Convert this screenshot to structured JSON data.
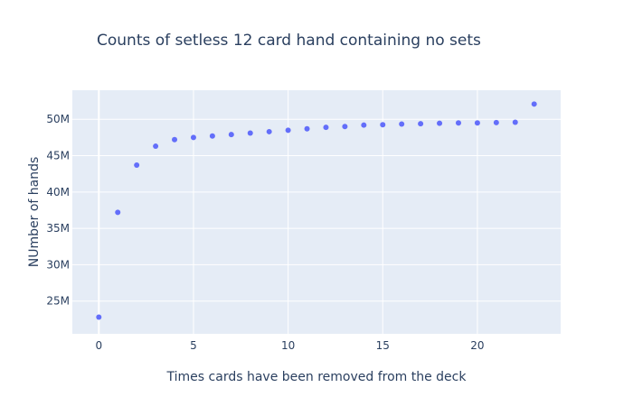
{
  "chart_data": {
    "type": "scatter",
    "title": "Counts of setless 12 card hand containing no sets",
    "xlabel": "Times cards have been removed from the deck",
    "ylabel": "NUmber of hands",
    "xlim": [
      -1.4,
      24.4
    ],
    "ylim": [
      20500000,
      54000000
    ],
    "x_ticks": [
      0,
      5,
      10,
      15,
      20
    ],
    "x_tick_labels": [
      "0",
      "5",
      "10",
      "15",
      "20"
    ],
    "y_ticks": [
      25000000,
      30000000,
      35000000,
      40000000,
      45000000,
      50000000
    ],
    "y_tick_labels": [
      "25M",
      "30M",
      "35M",
      "40M",
      "45M",
      "50M"
    ],
    "grid": true,
    "marker_color": "#636efa",
    "series": [
      {
        "x": [
          0,
          1,
          2,
          3,
          4,
          5,
          6,
          7,
          8,
          9,
          10,
          11,
          12,
          13,
          14,
          15,
          16,
          17,
          18,
          19,
          20,
          21,
          22,
          23
        ],
        "y": [
          22800000,
          37200000,
          43700000,
          46300000,
          47200000,
          47500000,
          47700000,
          47900000,
          48100000,
          48300000,
          48500000,
          48700000,
          48900000,
          49000000,
          49200000,
          49250000,
          49350000,
          49400000,
          49450000,
          49500000,
          49500000,
          49550000,
          49600000,
          52100000
        ]
      }
    ]
  }
}
